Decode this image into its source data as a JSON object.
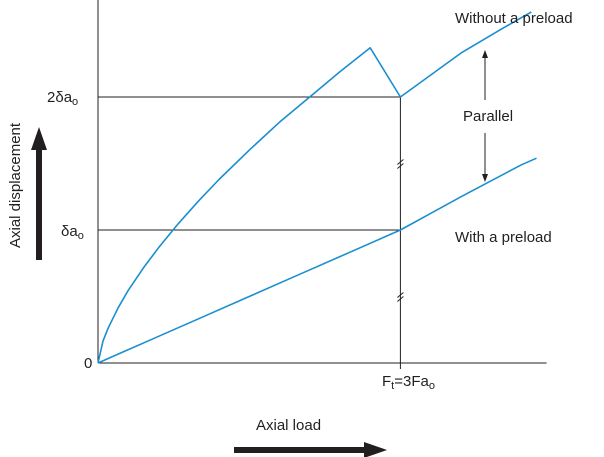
{
  "chart_data": {
    "type": "line",
    "title": "",
    "xlabel": "Axial load",
    "ylabel": "Axial displacement",
    "xlim": [
      0,
      4.45
    ],
    "ylim": [
      0,
      2.55
    ],
    "origin_label": "0",
    "x_marker": {
      "x": 3,
      "label": {
        "main_a": "F",
        "sub_a": "t",
        "main_b": "=3Fa",
        "sub_b": "o"
      }
    },
    "y_markers": [
      {
        "y": 2,
        "label": {
          "main": "2δa",
          "sub": "o"
        }
      },
      {
        "y": 1,
        "label": {
          "main": "δa",
          "sub": "o"
        }
      }
    ],
    "series": [
      {
        "name": "Without a preload",
        "color": "#1a8fcf",
        "points": [
          [
            0,
            0
          ],
          [
            0.05,
            0.165
          ],
          [
            0.1,
            0.262
          ],
          [
            0.2,
            0.416
          ],
          [
            0.3,
            0.546
          ],
          [
            0.45,
            0.715
          ],
          [
            0.6,
            0.866
          ],
          [
            0.8,
            1.05
          ],
          [
            1.0,
            1.22
          ],
          [
            1.2,
            1.38
          ],
          [
            1.5,
            1.6
          ],
          [
            1.8,
            1.81
          ],
          [
            2.1,
            2.0
          ],
          [
            2.4,
            2.19
          ],
          [
            2.7,
            2.37
          ],
          [
            3.0,
            2.0
          ],
          [
            3.2,
            2.11
          ],
          [
            3.6,
            2.33
          ],
          [
            4.0,
            2.51
          ],
          [
            4.3,
            2.64
          ]
        ]
      },
      {
        "name": "With a preload",
        "color": "#1a8fcf",
        "points": [
          [
            0,
            0
          ],
          [
            0.5,
            0.167
          ],
          [
            1.0,
            0.333
          ],
          [
            1.5,
            0.5
          ],
          [
            2.0,
            0.667
          ],
          [
            2.5,
            0.833
          ],
          [
            3.0,
            1.0
          ],
          [
            3.3,
            1.125
          ],
          [
            3.6,
            1.25
          ],
          [
            3.9,
            1.37
          ],
          [
            4.2,
            1.49
          ],
          [
            4.35,
            1.54
          ]
        ]
      }
    ],
    "annotation": "Parallel",
    "series_labels": [
      "Without a preload",
      "With a preload"
    ]
  }
}
